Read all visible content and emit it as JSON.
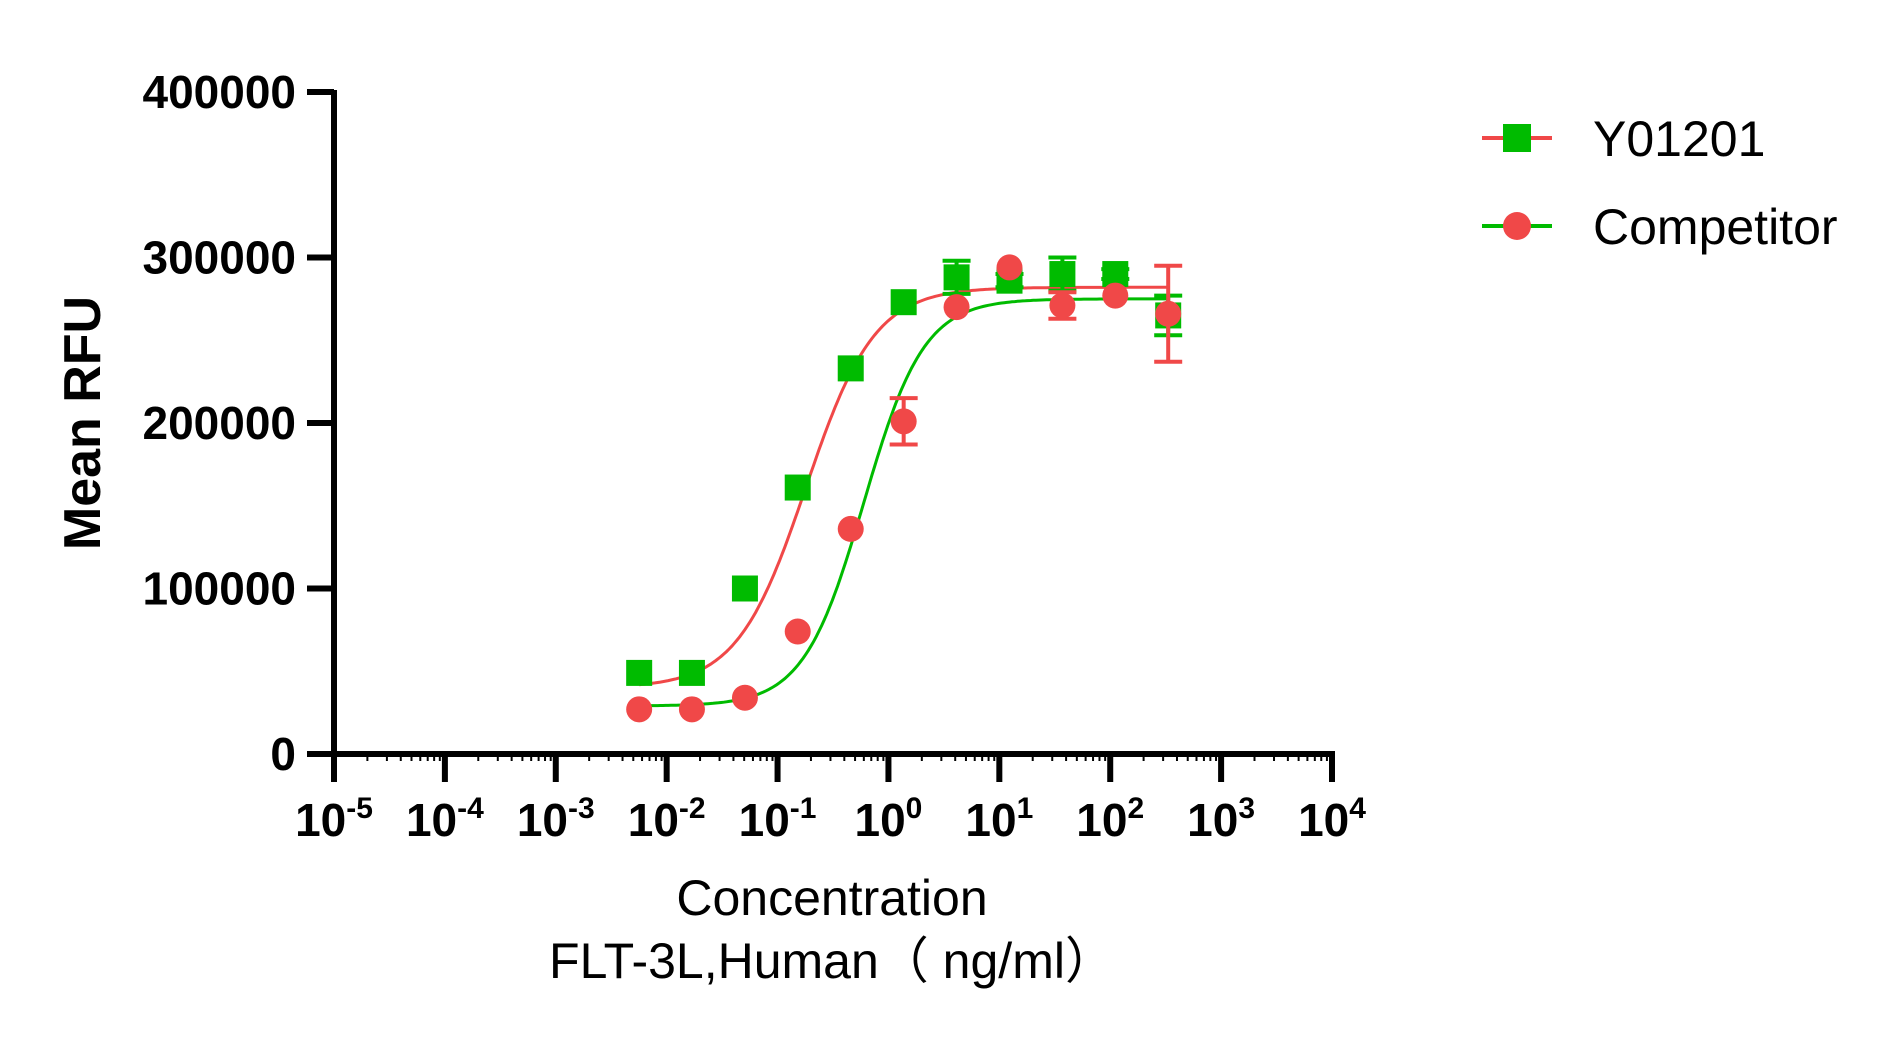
{
  "chart_data": {
    "type": "scatter",
    "xscale": "log",
    "xlabel": "Concentration",
    "xlabel_line2": "FLT-3L,Human（ ng/ml）",
    "ylabel": "Mean RFU",
    "xlim_log10": [
      -5,
      4
    ],
    "ylim": [
      0,
      400000
    ],
    "yticks": [
      "0",
      "100000",
      "200000",
      "300000",
      "400000"
    ],
    "ytick_values": [
      0,
      100000,
      200000,
      300000,
      400000
    ],
    "xticks_exponents": [
      "-5",
      "-4",
      "-3",
      "-2",
      "-1",
      "0",
      "1",
      "2",
      "3",
      "4"
    ],
    "xtick_base": "10",
    "grid": false,
    "legend_position": "top-right",
    "x": [
      0.00565,
      0.0169,
      0.0508,
      0.152,
      0.457,
      1.372,
      4.115,
      12.35,
      37.04,
      111.1,
      333.3
    ],
    "series": [
      {
        "name": "Y01201",
        "marker": "square",
        "marker_color": "#00BB00",
        "line_color": "#F04848",
        "values": [
          49000,
          49000,
          100000,
          161000,
          233000,
          273000,
          288000,
          286000,
          290000,
          290000,
          265000
        ],
        "errors": [
          0,
          0,
          0,
          0,
          0,
          0,
          10000,
          4000,
          10000,
          3000,
          12000
        ],
        "fit": {
          "bottom": 40000,
          "top": 282000,
          "ec50": 0.18,
          "hill": 1.4
        }
      },
      {
        "name": "Competitor",
        "marker": "circle",
        "marker_color": "#F04848",
        "line_color": "#00BB00",
        "values": [
          27000,
          27000,
          34000,
          74000,
          136000,
          201000,
          270000,
          294000,
          271000,
          277000,
          266000
        ],
        "errors": [
          0,
          0,
          0,
          0,
          0,
          14000,
          0,
          0,
          8000,
          0,
          29000
        ],
        "fit": {
          "bottom": 29000,
          "top": 275000,
          "ec50": 0.6,
          "hill": 1.6
        }
      }
    ]
  }
}
